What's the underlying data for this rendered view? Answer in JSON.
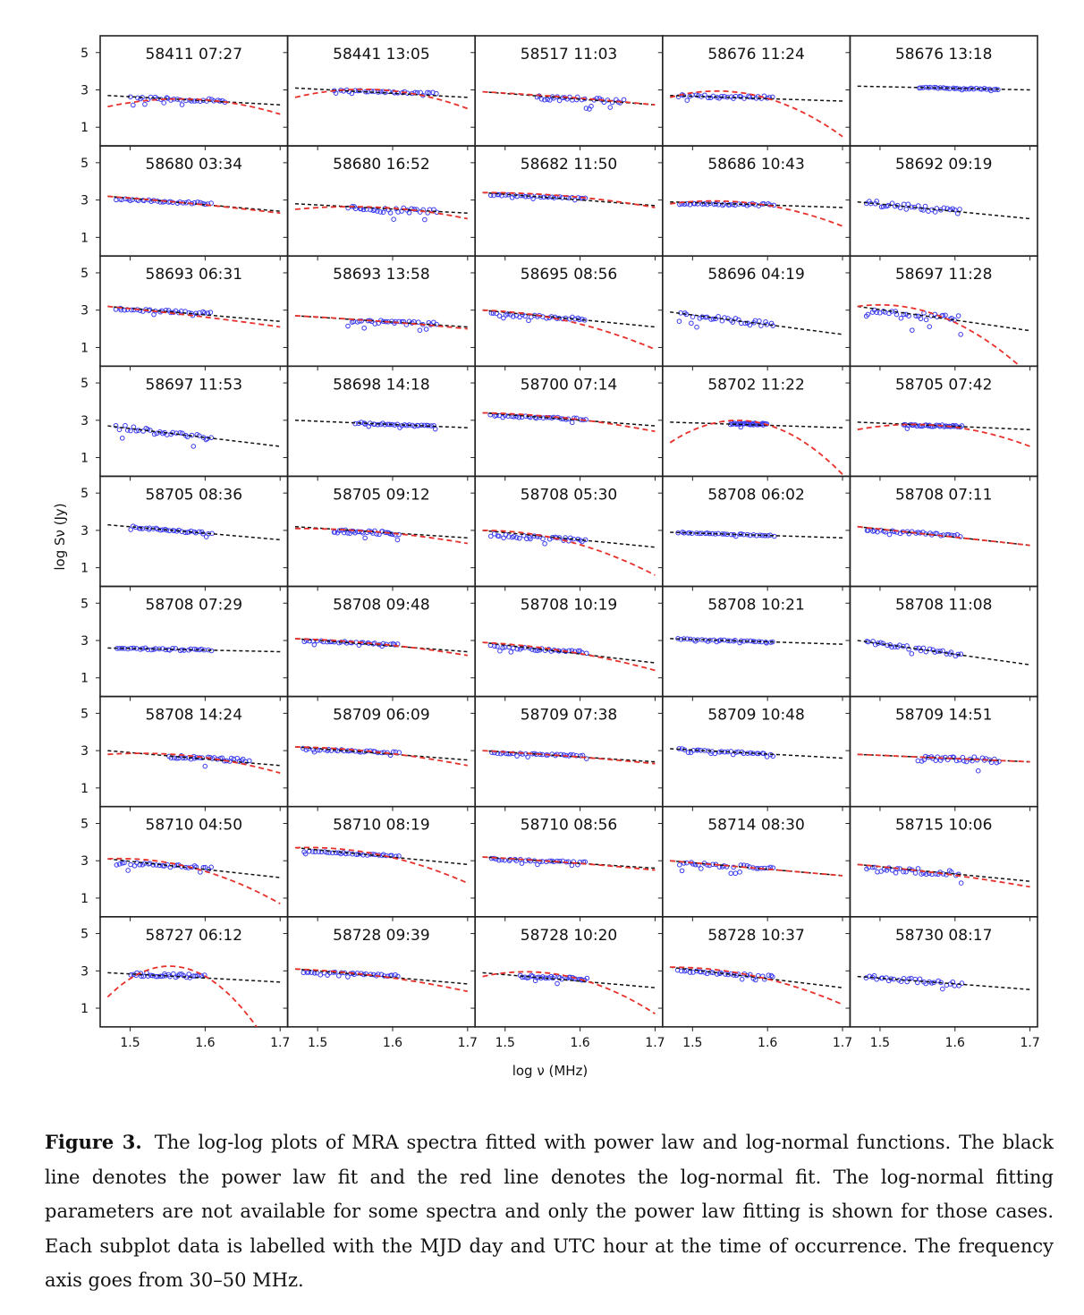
{
  "chart_data": {
    "type": "scatter",
    "layout": {
      "rows": 9,
      "cols": 5
    },
    "xlabel": "log ν (MHz)",
    "ylabel": "log Sν (Jy)",
    "xlim": [
      1.46,
      1.71
    ],
    "ylim": [
      0.0,
      5.9
    ],
    "xticks": [
      1.5,
      1.6,
      1.7
    ],
    "xtick_labels": [
      "1.5",
      "1.6",
      "1.7"
    ],
    "yticks": [
      1,
      3,
      5
    ],
    "ytick_labels": [
      "1",
      "3",
      "5"
    ],
    "colors": {
      "powerlaw": "#111111",
      "lognormal": "#e8302b",
      "points": "#3b3bf0",
      "frame": "#222222"
    },
    "series_style": {
      "powerlaw": "black dashed line",
      "lognormal": "red dashed line",
      "points": "blue open circles"
    },
    "panels": [
      {
        "label": "58411 07:27",
        "pl": [
          2.7,
          2.2
        ],
        "ln": [
          2.1,
          2.5,
          1.7
        ],
        "pts": [
          1.5,
          1.63,
          2.5,
          0.18
        ]
      },
      {
        "label": "58441 13:05",
        "pl": [
          3.1,
          2.6
        ],
        "ln": [
          2.6,
          3.0,
          2.0
        ],
        "pts": [
          1.52,
          1.66,
          2.95,
          0.1
        ]
      },
      {
        "label": "58517 11:03",
        "pl": [
          2.9,
          2.2
        ],
        "ln": [
          2.9,
          2.6,
          2.2
        ],
        "pts": [
          1.54,
          1.66,
          2.5,
          0.25
        ]
      },
      {
        "label": "58676 11:24",
        "pl": [
          2.7,
          2.4
        ],
        "ln": [
          2.6,
          2.7,
          0.5
        ],
        "pts": [
          1.48,
          1.61,
          2.65,
          0.18
        ]
      },
      {
        "label": "58676 13:18",
        "pl": [
          3.2,
          3.0
        ],
        "ln": null,
        "pts": [
          1.55,
          1.66,
          3.1,
          0.06
        ]
      },
      {
        "label": "58680 03:34",
        "pl": [
          3.2,
          2.4
        ],
        "ln": [
          3.2,
          2.8,
          2.3
        ],
        "pts": [
          1.48,
          1.61,
          2.9,
          0.12
        ]
      },
      {
        "label": "58680 16:52",
        "pl": [
          2.8,
          2.3
        ],
        "ln": [
          2.5,
          2.6,
          2.0
        ],
        "pts": [
          1.54,
          1.66,
          2.4,
          0.3
        ]
      },
      {
        "label": "58682 11:50",
        "pl": [
          3.4,
          2.7
        ],
        "ln": [
          3.4,
          3.2,
          2.6
        ],
        "pts": [
          1.48,
          1.61,
          3.2,
          0.08
        ]
      },
      {
        "label": "58686 10:43",
        "pl": [
          2.9,
          2.6
        ],
        "ln": [
          2.8,
          2.8,
          1.6
        ],
        "pts": [
          1.48,
          1.61,
          2.75,
          0.12
        ]
      },
      {
        "label": "58692 09:19",
        "pl": [
          2.9,
          2.0
        ],
        "ln": null,
        "pts": [
          1.48,
          1.61,
          2.6,
          0.3
        ]
      },
      {
        "label": "58693 06:31",
        "pl": [
          3.2,
          2.4
        ],
        "ln": [
          3.2,
          2.7,
          2.1
        ],
        "pts": [
          1.48,
          1.61,
          2.95,
          0.12
        ]
      },
      {
        "label": "58693 13:58",
        "pl": [
          2.7,
          2.1
        ],
        "ln": [
          2.7,
          2.4,
          2.0
        ],
        "pts": [
          1.54,
          1.66,
          2.3,
          0.2
        ]
      },
      {
        "label": "58695 08:56",
        "pl": [
          3.0,
          2.1
        ],
        "ln": [
          3.0,
          2.4,
          0.9
        ],
        "pts": [
          1.48,
          1.61,
          2.6,
          0.15
        ]
      },
      {
        "label": "58696 04:19",
        "pl": [
          2.9,
          1.7
        ],
        "ln": null,
        "pts": [
          1.48,
          1.61,
          2.4,
          0.3
        ]
      },
      {
        "label": "58697 11:28",
        "pl": [
          3.2,
          1.9
        ],
        "ln": [
          3.2,
          2.6,
          -0.5
        ],
        "pts": [
          1.48,
          1.61,
          2.6,
          0.4
        ]
      },
      {
        "label": "58697 11:53",
        "pl": [
          2.7,
          1.6
        ],
        "ln": null,
        "pts": [
          1.48,
          1.61,
          2.2,
          0.3
        ]
      },
      {
        "label": "58698 14:18",
        "pl": [
          3.0,
          2.6
        ],
        "ln": null,
        "pts": [
          1.55,
          1.66,
          2.85,
          0.1
        ]
      },
      {
        "label": "58700 07:14",
        "pl": [
          3.4,
          2.7
        ],
        "ln": [
          3.4,
          3.1,
          2.4
        ],
        "pts": [
          1.48,
          1.61,
          3.1,
          0.12
        ]
      },
      {
        "label": "58702 11:22",
        "pl": [
          2.9,
          2.6
        ],
        "ln": [
          1.8,
          2.9,
          0.1
        ],
        "pts": [
          1.55,
          1.6,
          2.85,
          0.1
        ]
      },
      {
        "label": "58705 07:42",
        "pl": [
          2.9,
          2.5
        ],
        "ln": [
          2.5,
          2.7,
          1.6
        ],
        "pts": [
          1.53,
          1.61,
          2.7,
          0.1
        ]
      },
      {
        "label": "58705 08:36",
        "pl": [
          3.3,
          2.5
        ],
        "ln": null,
        "pts": [
          1.5,
          1.61,
          3.0,
          0.12
        ]
      },
      {
        "label": "58705 09:12",
        "pl": [
          3.2,
          2.6
        ],
        "ln": [
          3.1,
          2.9,
          2.3
        ],
        "pts": [
          1.52,
          1.61,
          2.85,
          0.2
        ]
      },
      {
        "label": "58708 05:30",
        "pl": [
          3.0,
          2.1
        ],
        "ln": [
          3.0,
          2.4,
          0.6
        ],
        "pts": [
          1.48,
          1.61,
          2.5,
          0.2
        ]
      },
      {
        "label": "58708 06:02",
        "pl": [
          2.9,
          2.6
        ],
        "ln": null,
        "pts": [
          1.48,
          1.61,
          2.75,
          0.07
        ]
      },
      {
        "label": "58708 07:11",
        "pl": [
          3.2,
          2.2
        ],
        "ln": [
          3.2,
          2.7,
          2.2
        ],
        "pts": [
          1.48,
          1.61,
          2.85,
          0.14
        ]
      },
      {
        "label": "58708 07:29",
        "pl": [
          2.6,
          2.4
        ],
        "ln": null,
        "pts": [
          1.48,
          1.61,
          2.5,
          0.14
        ]
      },
      {
        "label": "58708 09:48",
        "pl": [
          3.1,
          2.4
        ],
        "ln": [
          3.1,
          2.8,
          2.2
        ],
        "pts": [
          1.48,
          1.61,
          2.9,
          0.1
        ]
      },
      {
        "label": "58708 10:19",
        "pl": [
          2.9,
          1.8
        ],
        "ln": [
          2.9,
          2.4,
          1.4
        ],
        "pts": [
          1.48,
          1.61,
          2.5,
          0.14
        ]
      },
      {
        "label": "58708 10:21",
        "pl": [
          3.1,
          2.8
        ],
        "ln": null,
        "pts": [
          1.48,
          1.61,
          2.95,
          0.05
        ]
      },
      {
        "label": "58708 11:08",
        "pl": [
          3.0,
          1.7
        ],
        "ln": null,
        "pts": [
          1.48,
          1.61,
          2.5,
          0.2
        ]
      },
      {
        "label": "58708 14:24",
        "pl": [
          3.0,
          2.2
        ],
        "ln": [
          2.8,
          2.7,
          1.8
        ],
        "pts": [
          1.55,
          1.66,
          2.6,
          0.2
        ]
      },
      {
        "label": "58709 06:09",
        "pl": [
          3.2,
          2.5
        ],
        "ln": [
          3.2,
          2.9,
          2.2
        ],
        "pts": [
          1.48,
          1.61,
          3.0,
          0.1
        ]
      },
      {
        "label": "58709 07:38",
        "pl": [
          3.0,
          2.4
        ],
        "ln": [
          3.0,
          2.7,
          2.3
        ],
        "pts": [
          1.48,
          1.61,
          2.8,
          0.08
        ]
      },
      {
        "label": "58709 10:48",
        "pl": [
          3.1,
          2.6
        ],
        "ln": null,
        "pts": [
          1.48,
          1.61,
          2.85,
          0.08
        ]
      },
      {
        "label": "58709 14:51",
        "pl": [
          2.8,
          2.4
        ],
        "ln": [
          2.8,
          2.6,
          2.4
        ],
        "pts": [
          1.55,
          1.66,
          2.5,
          0.3
        ]
      },
      {
        "label": "58710 04:50",
        "pl": [
          3.1,
          2.1
        ],
        "ln": [
          3.1,
          2.6,
          0.7
        ],
        "pts": [
          1.48,
          1.61,
          2.7,
          0.2
        ]
      },
      {
        "label": "58710 08:19",
        "pl": [
          3.7,
          2.8
        ],
        "ln": [
          3.7,
          3.3,
          1.8
        ],
        "pts": [
          1.48,
          1.61,
          3.35,
          0.08
        ]
      },
      {
        "label": "58710 08:56",
        "pl": [
          3.2,
          2.6
        ],
        "ln": [
          3.2,
          2.9,
          2.5
        ],
        "pts": [
          1.48,
          1.61,
          3.0,
          0.1
        ]
      },
      {
        "label": "58714 08:30",
        "pl": [
          3.0,
          2.2
        ],
        "ln": [
          3.0,
          2.6,
          2.2
        ],
        "pts": [
          1.48,
          1.61,
          2.75,
          0.2
        ]
      },
      {
        "label": "58715 10:06",
        "pl": [
          2.8,
          1.9
        ],
        "ln": [
          2.8,
          2.3,
          1.6
        ],
        "pts": [
          1.48,
          1.61,
          2.4,
          0.3
        ]
      },
      {
        "label": "58727 06:12",
        "pl": [
          2.9,
          2.4
        ],
        "ln": [
          1.6,
          3.0,
          -2.0
        ],
        "pts": [
          1.5,
          1.6,
          2.8,
          0.2
        ]
      },
      {
        "label": "58728 09:39",
        "pl": [
          3.1,
          2.3
        ],
        "ln": [
          3.1,
          2.7,
          1.9
        ],
        "pts": [
          1.48,
          1.61,
          2.85,
          0.1
        ]
      },
      {
        "label": "58728 10:20",
        "pl": [
          2.9,
          2.1
        ],
        "ln": [
          2.7,
          2.7,
          0.7
        ],
        "pts": [
          1.52,
          1.61,
          2.7,
          0.15
        ]
      },
      {
        "label": "58728 10:37",
        "pl": [
          3.2,
          2.1
        ],
        "ln": [
          3.2,
          2.7,
          1.2
        ],
        "pts": [
          1.48,
          1.61,
          2.85,
          0.12
        ]
      },
      {
        "label": "58730 08:17",
        "pl": [
          2.7,
          2.0
        ],
        "ln": null,
        "pts": [
          1.48,
          1.61,
          2.4,
          0.25
        ]
      }
    ]
  },
  "caption": {
    "label": "Figure 3.",
    "text": "The log-log plots of MRA spectra fitted with power law and log-normal functions. The black line denotes the power law fit and the red line denotes the log-normal fit. The log-normal fitting parameters are not available for some spectra and only the power law fitting is shown for those cases. Each subplot data is labelled with the MJD day and UTC hour at the time of occurrence. The frequency axis goes from 30–50 MHz."
  }
}
